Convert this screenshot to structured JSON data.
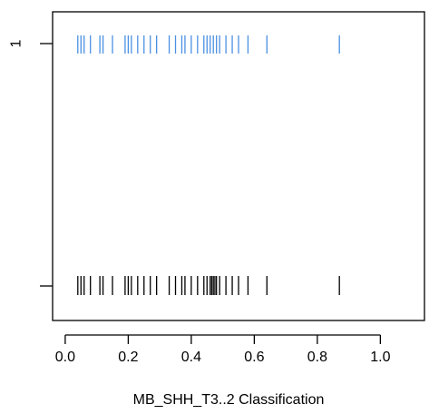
{
  "chart_data": {
    "type": "scatter",
    "xlabel": "MB_SHH_T3..2  Classification",
    "ylabel": "",
    "xlim": [
      -0.04,
      1.14
    ],
    "xticks": [
      0.0,
      0.2,
      0.4,
      0.6,
      0.8,
      1.0
    ],
    "xtick_labels": [
      "0.0",
      "0.2",
      "0.4",
      "0.6",
      "0.8",
      "1.0"
    ],
    "ytick_labels": [
      "1",
      ""
    ],
    "grid": false,
    "series": [
      {
        "color": "#4a90e2",
        "row": "top",
        "x": [
          0.04,
          0.05,
          0.06,
          0.08,
          0.11,
          0.12,
          0.15,
          0.19,
          0.2,
          0.21,
          0.23,
          0.25,
          0.27,
          0.29,
          0.33,
          0.35,
          0.37,
          0.38,
          0.4,
          0.42,
          0.44,
          0.45,
          0.46,
          0.47,
          0.48,
          0.49,
          0.51,
          0.53,
          0.55,
          0.58,
          0.64,
          0.87
        ]
      },
      {
        "color": "#000000",
        "row": "bottom",
        "x": [
          0.04,
          0.05,
          0.06,
          0.08,
          0.11,
          0.12,
          0.15,
          0.19,
          0.2,
          0.21,
          0.23,
          0.25,
          0.27,
          0.29,
          0.33,
          0.35,
          0.37,
          0.38,
          0.4,
          0.42,
          0.44,
          0.45,
          0.46,
          0.465,
          0.47,
          0.475,
          0.48,
          0.49,
          0.51,
          0.53,
          0.55,
          0.58,
          0.64,
          0.87
        ]
      }
    ]
  }
}
